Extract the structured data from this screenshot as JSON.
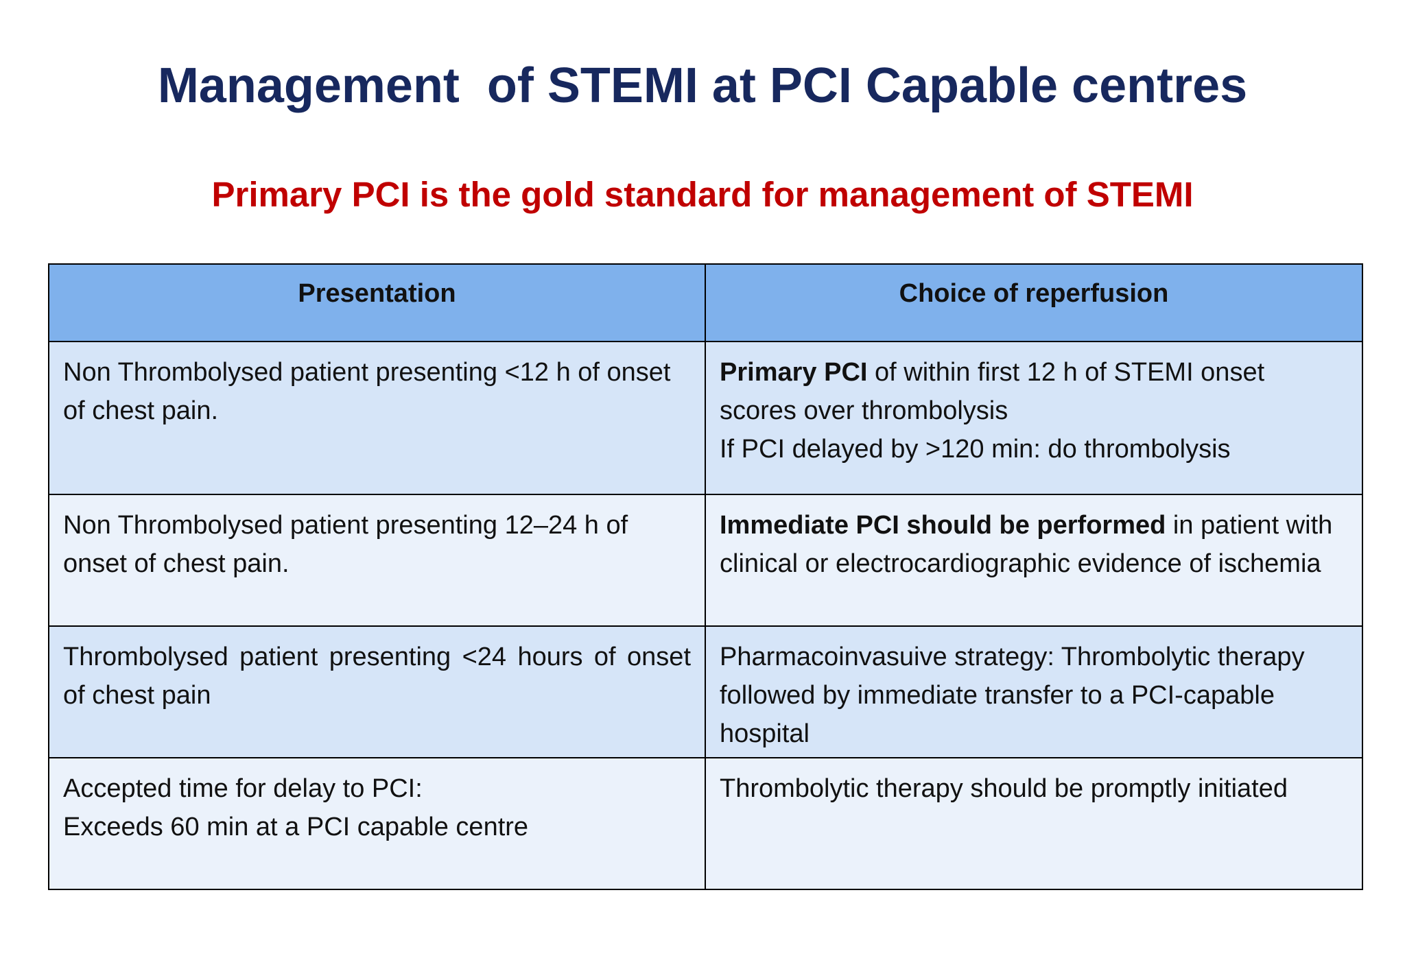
{
  "slide": {
    "title": "Management  of STEMI at PCI Capable centres",
    "subtitle": "Primary PCI is the gold standard for management of STEMI"
  },
  "table": {
    "headers": [
      "Presentation",
      "Choice of reperfusion"
    ],
    "rows": [
      {
        "presentation": "Non Thrombolysed patient presenting <12 h of onset of chest pain.",
        "reperfusion_bold": "Primary PCI",
        "reperfusion_rest": " of  within first 12 h of STEMI onset scores over thrombolysis",
        "reperfusion_line2": "If PCI delayed by >120 min: do thrombolysis"
      },
      {
        "presentation": "Non Thrombolysed patient presenting 12–24 h of onset of chest pain.",
        "reperfusion_bold": "Immediate PCI should be performed",
        "reperfusion_rest": " in patient with clinical or electrocardiographic evidence of ischemia"
      },
      {
        "presentation": "Thrombolysed patient presenting <24 hours of onset of chest pain",
        "reperfusion": "Pharmacoinvasuive strategy: Thrombolytic therapy followed by immediate transfer to a PCI-capable hospital"
      },
      {
        "presentation_line1": "Accepted time for delay to PCI:",
        "presentation_line2": "Exceeds 60 min at a PCI capable centre",
        "reperfusion": "Thrombolytic therapy should be promptly initiated"
      }
    ]
  }
}
